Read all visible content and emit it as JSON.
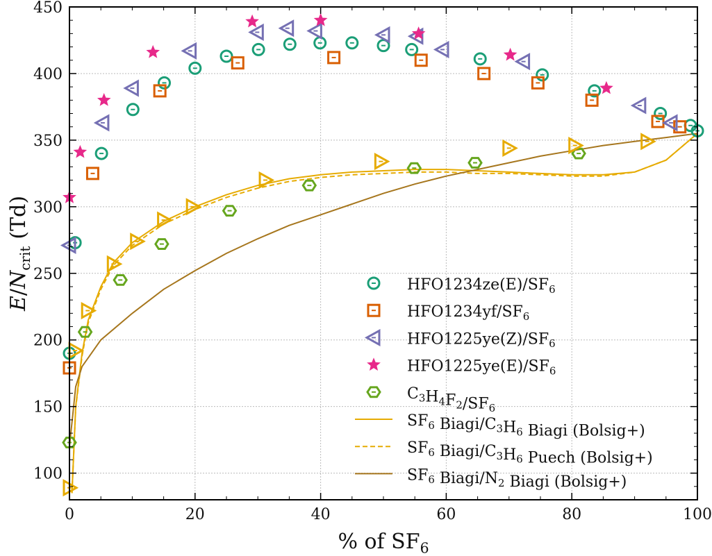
{
  "chart_data": {
    "type": "scatter",
    "xlabel": "% of SF_{6}",
    "ylabel_parts": {
      "e": "E",
      "slash": "/",
      "n": "N",
      "sub": "crit",
      "unit": "(Td)"
    },
    "xlim": [
      0,
      100
    ],
    "ylim": [
      80,
      450
    ],
    "xticks": [
      0,
      20,
      40,
      60,
      80,
      100
    ],
    "yticks": [
      100,
      150,
      200,
      250,
      300,
      350,
      400,
      450
    ],
    "grid": true,
    "legend_position": "lower-right",
    "series": [
      {
        "name": "HFO1234ze(E)/SF_{6}",
        "marker": "circle",
        "color": "#1b9e77",
        "points": [
          [
            0,
            190
          ],
          [
            0.9,
            273
          ],
          [
            5.1,
            340
          ],
          [
            10.1,
            373
          ],
          [
            15.1,
            393
          ],
          [
            20,
            404
          ],
          [
            25,
            413
          ],
          [
            30.1,
            418
          ],
          [
            35.1,
            422
          ],
          [
            39.9,
            423
          ],
          [
            45,
            423
          ],
          [
            50,
            421
          ],
          [
            54.5,
            418
          ],
          [
            65.4,
            411
          ],
          [
            75.3,
            399
          ],
          [
            83.6,
            387
          ],
          [
            94.1,
            370
          ],
          [
            98.9,
            361
          ],
          [
            100,
            357
          ]
        ]
      },
      {
        "name": "HFO1234yf/SF_{6}",
        "marker": "square",
        "color": "#d95f02",
        "points": [
          [
            0,
            179
          ],
          [
            3.7,
            325
          ],
          [
            14.4,
            387
          ],
          [
            26.8,
            408
          ],
          [
            42.1,
            412
          ],
          [
            56,
            410
          ],
          [
            66,
            400
          ],
          [
            74.6,
            393
          ],
          [
            83.2,
            380
          ],
          [
            93.7,
            364
          ],
          [
            97.2,
            360
          ]
        ]
      },
      {
        "name": "HFO1225ye(Z)/SF_{6}",
        "marker": "triangle-left",
        "color": "#7570b3",
        "points": [
          [
            0,
            271
          ],
          [
            5.3,
            363
          ],
          [
            10,
            389
          ],
          [
            19.2,
            417
          ],
          [
            29.9,
            431
          ],
          [
            34.7,
            434
          ],
          [
            39.2,
            432
          ],
          [
            50,
            429
          ],
          [
            55.3,
            428
          ],
          [
            59.4,
            418
          ],
          [
            72.3,
            409
          ],
          [
            90.8,
            376
          ],
          [
            95.8,
            363
          ]
        ]
      },
      {
        "name": "HFO1225ye(E)/SF_{6}",
        "marker": "star",
        "color": "#e7298a",
        "points": [
          [
            0,
            307
          ],
          [
            1.7,
            341
          ],
          [
            5.5,
            380
          ],
          [
            13.3,
            416
          ],
          [
            29.1,
            439
          ],
          [
            40,
            440
          ],
          [
            55.6,
            430
          ],
          [
            70.2,
            414
          ],
          [
            85.5,
            389
          ]
        ]
      },
      {
        "name": "C_{3}H_{4}F_{2}/SF_{6}",
        "marker": "hexagon",
        "color": "#66a61e",
        "points": [
          [
            0,
            123
          ],
          [
            2.5,
            206
          ],
          [
            8.1,
            245
          ],
          [
            14.7,
            272
          ],
          [
            25.5,
            297
          ],
          [
            38.2,
            316
          ],
          [
            54.9,
            329
          ],
          [
            64.6,
            333
          ],
          [
            81.1,
            340
          ]
        ]
      },
      {
        "marker": "triangle-right",
        "color": "#e6ab02",
        "points": [
          [
            0,
            89
          ],
          [
            0.9,
            192
          ],
          [
            2.9,
            222
          ],
          [
            7,
            257
          ],
          [
            10.7,
            274
          ],
          [
            15,
            290
          ],
          [
            19.6,
            300
          ],
          [
            31.2,
            320
          ],
          [
            49.6,
            334
          ],
          [
            70,
            344
          ],
          [
            80.5,
            346
          ],
          [
            92,
            349
          ]
        ]
      }
    ],
    "lines": [
      {
        "name": "SF_{6} Biagi/C_{3}H_{6} Biagi (Bolsig+)",
        "style": "solid",
        "color": "#e6ab02",
        "points": [
          [
            0.4,
            85
          ],
          [
            1,
            150
          ],
          [
            2,
            190
          ],
          [
            3,
            215
          ],
          [
            5,
            240
          ],
          [
            7,
            258
          ],
          [
            10,
            273
          ],
          [
            15,
            289
          ],
          [
            20,
            300
          ],
          [
            25,
            309
          ],
          [
            30,
            316
          ],
          [
            35,
            321
          ],
          [
            40,
            324
          ],
          [
            45,
            326
          ],
          [
            50,
            327
          ],
          [
            55,
            328
          ],
          [
            60,
            328
          ],
          [
            65,
            327
          ],
          [
            70,
            326
          ],
          [
            75,
            325
          ],
          [
            80,
            324
          ],
          [
            85,
            324
          ],
          [
            90,
            326
          ],
          [
            95,
            335
          ],
          [
            100,
            355
          ]
        ]
      },
      {
        "name": "SF_{6} Biagi/C_{3}H_{6} Puech (Bolsig+)",
        "style": "dashed",
        "color": "#e6ab02",
        "points": [
          [
            0.4,
            85
          ],
          [
            1,
            149
          ],
          [
            2,
            188
          ],
          [
            3,
            213
          ],
          [
            5,
            238
          ],
          [
            7,
            256
          ],
          [
            10,
            271
          ],
          [
            15,
            287
          ],
          [
            20,
            298
          ],
          [
            25,
            307
          ],
          [
            30,
            314
          ],
          [
            35,
            319
          ],
          [
            40,
            322
          ],
          [
            45,
            324
          ],
          [
            50,
            325
          ],
          [
            55,
            326
          ],
          [
            60,
            326
          ],
          [
            65,
            325
          ],
          [
            70,
            325
          ],
          [
            75,
            324
          ],
          [
            80,
            323
          ],
          [
            85,
            323
          ],
          [
            90,
            326
          ],
          [
            95,
            335
          ],
          [
            100,
            355
          ]
        ]
      },
      {
        "name": "SF_{6} Biagi/N_{2} Biagi (Bolsig+)",
        "style": "solid",
        "color": "#a6761d",
        "points": [
          [
            0,
            120
          ],
          [
            1,
            165
          ],
          [
            2,
            180
          ],
          [
            5,
            200
          ],
          [
            10,
            220
          ],
          [
            15,
            238
          ],
          [
            20,
            252
          ],
          [
            25,
            265
          ],
          [
            30,
            276
          ],
          [
            35,
            286
          ],
          [
            40,
            294
          ],
          [
            45,
            302
          ],
          [
            50,
            310
          ],
          [
            55,
            317
          ],
          [
            60,
            323
          ],
          [
            65,
            328
          ],
          [
            70,
            333
          ],
          [
            75,
            338
          ],
          [
            80,
            342
          ],
          [
            85,
            346
          ],
          [
            90,
            349
          ],
          [
            95,
            352
          ],
          [
            100,
            355
          ]
        ]
      }
    ]
  }
}
